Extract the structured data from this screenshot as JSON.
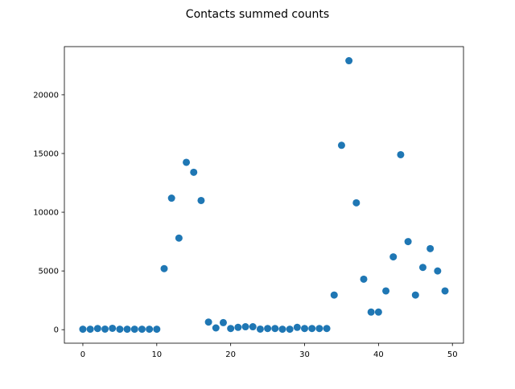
{
  "chart_data": {
    "type": "scatter",
    "title": "Contacts summed counts",
    "xlabel": "",
    "ylabel": "",
    "xlim": [
      -2.5,
      51.5
    ],
    "ylim": [
      -1150,
      24100
    ],
    "xticks": [
      0,
      10,
      20,
      30,
      40,
      50
    ],
    "yticks": [
      0,
      5000,
      10000,
      15000,
      20000
    ],
    "grid": false,
    "legend": "none",
    "series": [
      {
        "color": "#1f77b4",
        "x": [
          0,
          1,
          2,
          3,
          4,
          5,
          6,
          7,
          8,
          9,
          10,
          11,
          12,
          13,
          14,
          15,
          16,
          17,
          18,
          19,
          20,
          21,
          22,
          23,
          24,
          25,
          26,
          27,
          28,
          29,
          30,
          31,
          32,
          33,
          34,
          35,
          36,
          37,
          38,
          39,
          40,
          41,
          42,
          43,
          44,
          45,
          46,
          47,
          48,
          49
        ],
        "y": [
          40,
          40,
          100,
          50,
          120,
          40,
          40,
          40,
          40,
          40,
          40,
          5200,
          11200,
          7800,
          14250,
          13400,
          11000,
          650,
          150,
          600,
          100,
          200,
          250,
          250,
          50,
          100,
          100,
          40,
          40,
          200,
          100,
          100,
          100,
          100,
          2950,
          15700,
          22900,
          10800,
          4300,
          1500,
          1500,
          3300,
          6200,
          14900,
          7500,
          2950,
          5300,
          6900,
          5000,
          3300
        ]
      }
    ]
  }
}
